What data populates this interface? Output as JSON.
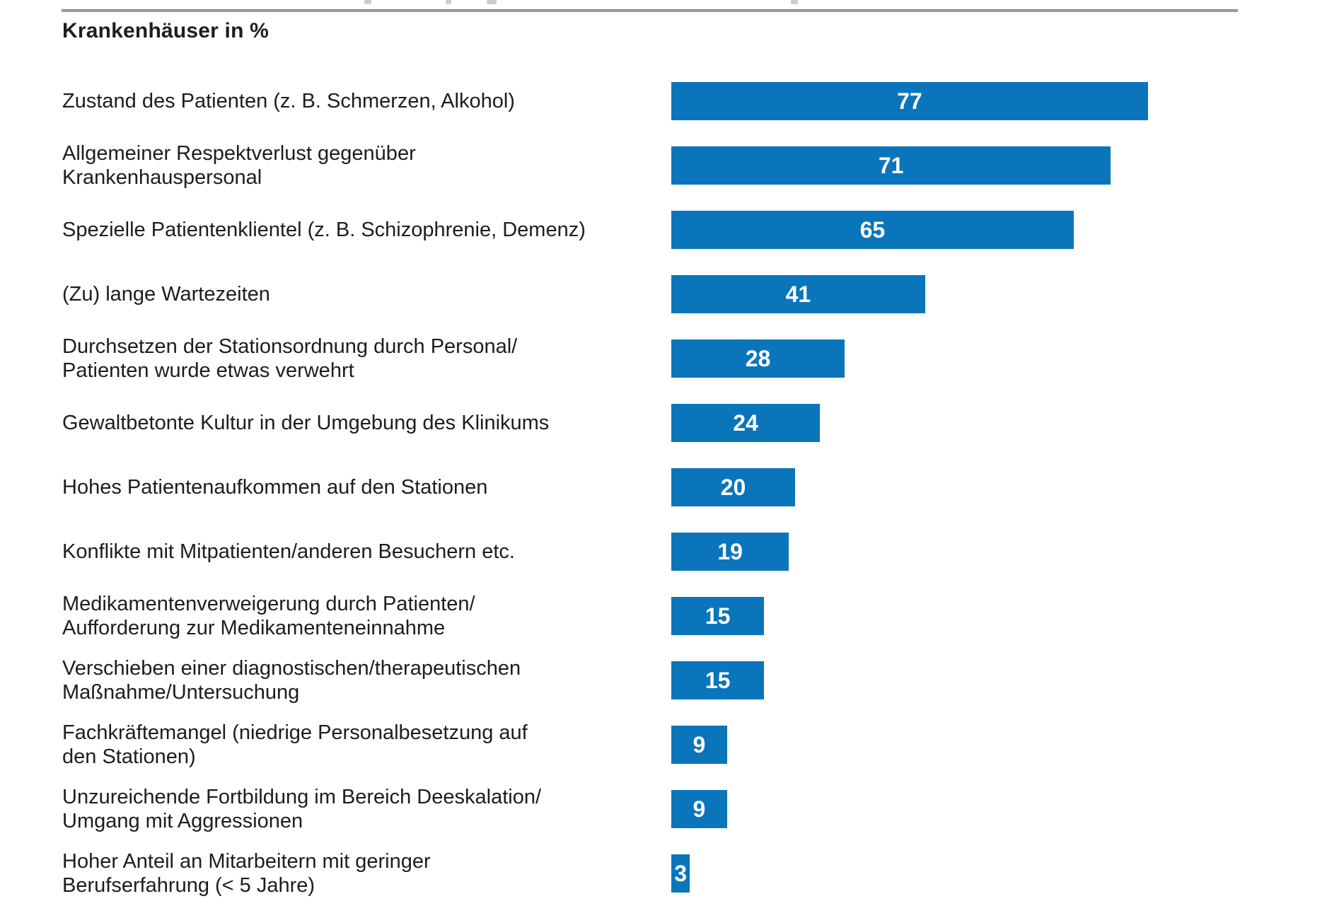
{
  "chart": {
    "title": "Krankenhäuser in %"
  },
  "colors": {
    "bar": "#0b75bb",
    "label_text": "#1d1d1b",
    "value_text": "#ffffff",
    "top_rule": "#9a9a9a",
    "background": "#ffffff"
  },
  "chart_data": {
    "type": "bar",
    "orientation": "horizontal",
    "title": "Krankenhäuser in %",
    "value_unit": "%",
    "categories": [
      "Zustand des Patienten (z. B. Schmerzen, Alkohol)",
      "Allgemeiner Respektverlust gegenüber\nKrankenhauspersonal",
      "Spezielle Patientenklientel (z. B. Schizophrenie, Demenz)",
      "(Zu) lange Wartezeiten",
      "Durchsetzen der Stationsordnung durch Personal/\nPatienten wurde etwas verwehrt",
      "Gewaltbetonte Kultur in der Umgebung des Klinikums",
      "Hohes Patientenaufkommen auf den Stationen",
      "Konflikte mit Mitpatienten/anderen Besuchern etc.",
      "Medikamentenverweigerung durch Patienten/\nAufforderung zur Medikamenteneinnahme",
      "Verschieben einer diagnostischen/therapeutischen\nMaßnahme/Untersuchung",
      "Fachkräftemangel (niedrige Personalbesetzung auf\nden Stationen)",
      "Unzureichende Fortbildung im Bereich Deeskalation/\nUmgang mit Aggressionen",
      "Hoher Anteil an Mitarbeitern mit geringer\nBerufserfahrung (< 5 Jahre)"
    ],
    "values": [
      77,
      71,
      65,
      41,
      28,
      24,
      20,
      19,
      15,
      15,
      9,
      9,
      3
    ],
    "xlim": [
      0,
      100
    ],
    "grid": false,
    "legend": null,
    "value_label_position": "inside-center"
  }
}
